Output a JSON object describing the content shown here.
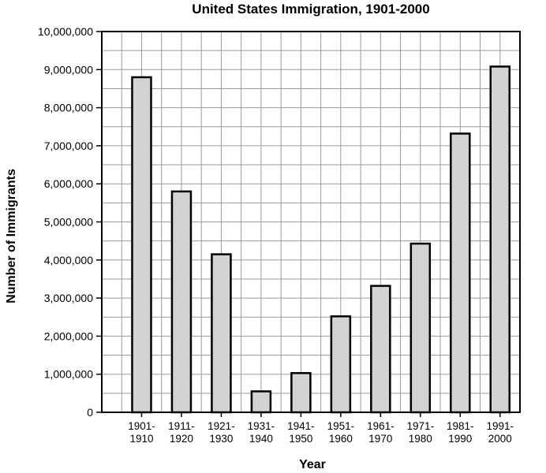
{
  "chart_data": {
    "type": "bar",
    "title": "United States Immigration, 1901-2000",
    "xlabel": "Year",
    "ylabel": "Number of Immigrants",
    "categories": [
      [
        "1901-",
        "1910"
      ],
      [
        "1911-",
        "1920"
      ],
      [
        "1921-",
        "1930"
      ],
      [
        "1931-",
        "1940"
      ],
      [
        "1941-",
        "1950"
      ],
      [
        "1951-",
        "1960"
      ],
      [
        "1961-",
        "1970"
      ],
      [
        "1971-",
        "1980"
      ],
      [
        "1981-",
        "1990"
      ],
      [
        "1991-",
        "2000"
      ]
    ],
    "values": [
      8800000,
      5800000,
      4150000,
      550000,
      1030000,
      2520000,
      3320000,
      4430000,
      7320000,
      9080000
    ],
    "ylim": [
      0,
      10000000
    ],
    "yticks": [
      0,
      1000000,
      2000000,
      3000000,
      4000000,
      5000000,
      6000000,
      7000000,
      8000000,
      9000000,
      10000000
    ],
    "ytick_labels": [
      "0",
      "1,000,000",
      "2,000,000",
      "3,000,000",
      "4,000,000",
      "5,000,000",
      "6,000,000",
      "7,000,000",
      "8,000,000",
      "9,000,000",
      "10,000,000"
    ],
    "grid": true,
    "colors": {
      "bar_fill": "#d3d3d3",
      "bar_stroke": "#000000",
      "grid": "#9a9a9a"
    }
  }
}
